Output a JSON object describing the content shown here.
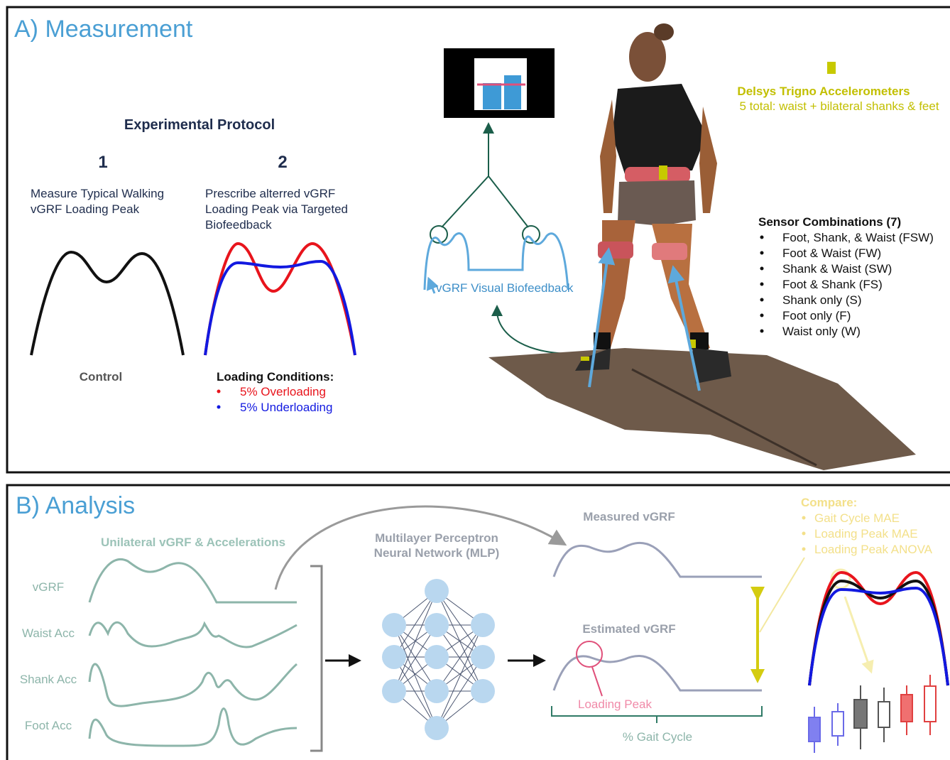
{
  "panel_a": {
    "title": "A) Measurement",
    "protocol": {
      "title": "Experimental Protocol",
      "step1": {
        "number": "1",
        "lines": [
          "Measure Typical Walking",
          "vGRF Loading Peak"
        ],
        "caption": "Control"
      },
      "step2": {
        "number": "2",
        "lines": [
          "Prescribe alterred vGRF",
          "Loading Peak via Targeted",
          "Biofeedback"
        ]
      },
      "loading_conditions": {
        "title": "Loading Conditions:",
        "items": [
          "5% Overloading",
          "5% Underloading"
        ]
      }
    },
    "biofeedback_label": "vGRF Visual Biofeedback",
    "sensors": {
      "title": "Delsys Trigno Accelerometers",
      "subtitle": "5 total: waist + bilateral shanks & feet"
    },
    "combinations": {
      "title": "Sensor Combinations (7)",
      "items": [
        "Foot, Shank, & Waist (FSW)",
        "Foot & Waist (FW)",
        "Shank & Waist (SW)",
        "Foot & Shank (FS)",
        "Shank only (S)",
        "Foot only (F)",
        "Waist only (W)"
      ]
    }
  },
  "panel_b": {
    "title": "B) Analysis",
    "inputs": {
      "title": "Unilateral vGRF & Accelerations",
      "signals": [
        "vGRF",
        "Waist Acc",
        "Shank Acc",
        "Foot Acc"
      ]
    },
    "model": {
      "lines": [
        "Multilayer Perceptron",
        "Neural Network (MLP)"
      ]
    },
    "measured": "Measured vGRF",
    "estimated": "Estimated vGRF",
    "loading_peak": "Loading Peak",
    "gait_cycle": "% Gait Cycle",
    "compare": {
      "title": "Compare:",
      "items": [
        "Gait Cycle MAE",
        "Loading Peak MAE",
        "Loading Peak ANOVA"
      ]
    }
  }
}
